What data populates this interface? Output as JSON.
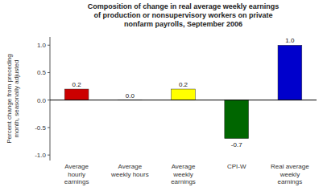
{
  "chart_data": {
    "type": "bar",
    "title": "Composition of change in real average weekly earnings\nof production or nonsupervisory workers on private\nnonfarm payrolls, September 2006",
    "ylabel": "Percent change from preceding\nmonth, seasonally adjusted",
    "categories": [
      "Average\nhourly\nearnings",
      "Average\nweekly hours",
      "Average\nweekly\nearnings",
      "CPI-W",
      "Real average\nweekly\nearnings"
    ],
    "values": [
      0.2,
      0.0,
      0.2,
      -0.7,
      1.0
    ],
    "value_labels": [
      "0.2",
      "0.0",
      "0.2",
      "-0.7",
      "1.0"
    ],
    "colors": [
      "#cc0000",
      "#cccc00",
      "#ffff00",
      "#006600",
      "#0000cc"
    ],
    "ylim": [
      -1.1,
      1.15
    ],
    "yticks": [
      {
        "value": -1.0,
        "label": "-1.0"
      },
      -0.5,
      {
        "value": 0.0,
        "label": "0.0"
      },
      0.5,
      {
        "value": 1.0,
        "label": "1.0"
      }
    ],
    "grid": false,
    "data_labels": true
  }
}
